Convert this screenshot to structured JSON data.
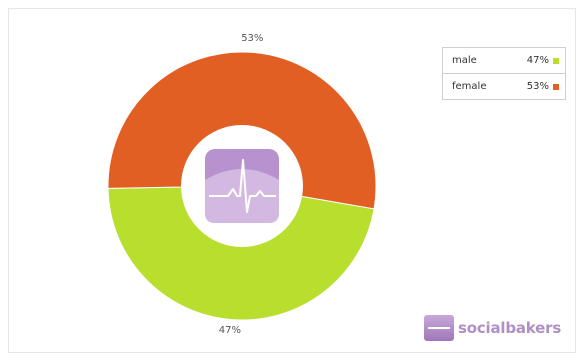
{
  "chart_data": {
    "type": "pie",
    "title": "",
    "donut": true,
    "categories": [
      "male",
      "female"
    ],
    "values": [
      47,
      53
    ],
    "labels": [
      "47%",
      "53%"
    ],
    "colors": [
      "#b8de2e",
      "#e25f23"
    ],
    "legend_position": "top-right"
  },
  "legend": {
    "items": [
      {
        "name": "male",
        "value": "47%",
        "color": "#b8de2e"
      },
      {
        "name": "female",
        "value": "53%",
        "color": "#e25f23"
      }
    ]
  },
  "center_icon": "heartbeat-monitor-icon",
  "brand": {
    "text": "socialbakers",
    "logo": "socialbakers-logo-icon"
  }
}
